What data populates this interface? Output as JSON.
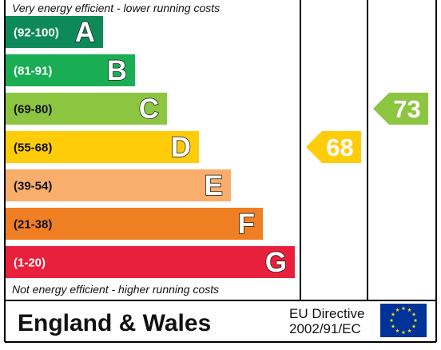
{
  "chart_data": {
    "type": "bar",
    "top_note": "Very energy efficient - lower running costs",
    "bottom_note": "Not energy efficient - higher running costs",
    "bands": [
      {
        "range": "(92-100)",
        "letter": "A",
        "color": "#0e8a5a",
        "range_text_color": "#ffffff"
      },
      {
        "range": "(81-91)",
        "letter": "B",
        "color": "#1aae54",
        "range_text_color": "#ffffff"
      },
      {
        "range": "(69-80)",
        "letter": "C",
        "color": "#8cc540",
        "range_text_color": "#111111"
      },
      {
        "range": "(55-68)",
        "letter": "D",
        "color": "#ffcc0a",
        "range_text_color": "#111111"
      },
      {
        "range": "(39-54)",
        "letter": "E",
        "color": "#f9ae6c",
        "range_text_color": "#111111"
      },
      {
        "range": "(21-38)",
        "letter": "F",
        "color": "#f07e22",
        "range_text_color": "#111111"
      },
      {
        "range": "(1-20)",
        "letter": "G",
        "color": "#e9203b",
        "range_text_color": "#ffffff"
      }
    ],
    "ratings": [
      {
        "value": 68,
        "band": "D",
        "color": "#ffcc0a"
      },
      {
        "value": 73,
        "band": "C",
        "color": "#8cc540"
      }
    ],
    "footer": {
      "region": "England & Wales",
      "directive_line1": "EU Directive",
      "directive_line2": "2002/91/EC",
      "flag_icon": "eu-flag-icon",
      "flag_color": "#003399",
      "star_color": "#ffdd00"
    }
  }
}
